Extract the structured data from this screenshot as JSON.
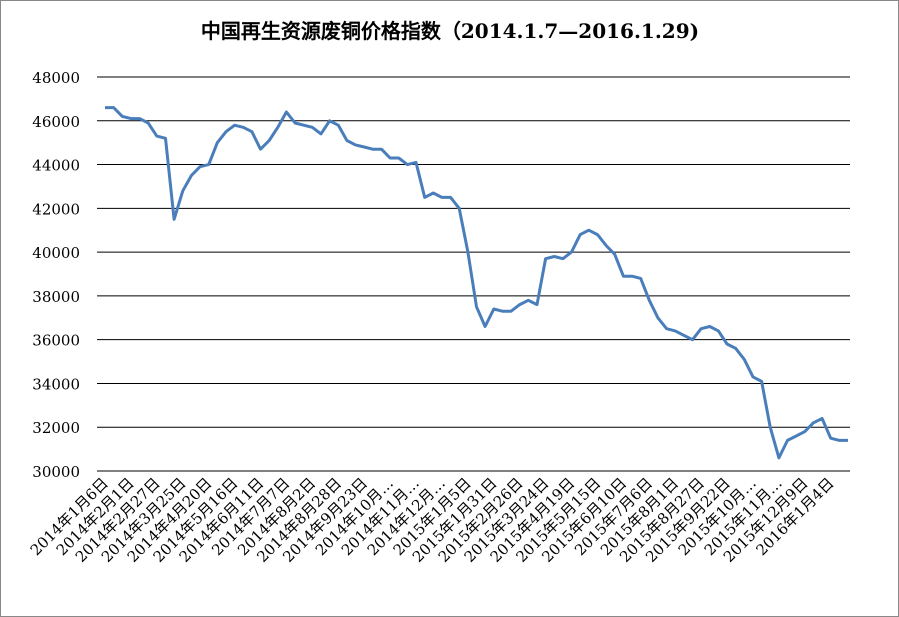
{
  "chart_data": {
    "type": "line",
    "title": "中国再生资源废铜价格指数（2014.1.7—2016.1.29)",
    "categories": [
      "2014年1月6日",
      null,
      null,
      "2014年2月1日",
      null,
      null,
      "2014年2月27日",
      null,
      null,
      "2014年3月25日",
      null,
      null,
      "2014年4月20日",
      null,
      null,
      "2014年5月16日",
      null,
      null,
      "2014年6月11日",
      null,
      null,
      "2014年7月7日",
      null,
      null,
      "2014年8月2日",
      null,
      null,
      "2014年8月28日",
      null,
      null,
      "2014年9月23日",
      null,
      null,
      "2014年10月…",
      null,
      null,
      "2014年11月…",
      null,
      null,
      "2014年12月…",
      null,
      null,
      "2015年1月5日",
      null,
      null,
      "2015年1月31日",
      null,
      null,
      "2015年2月26日",
      null,
      null,
      "2015年3月24日",
      null,
      null,
      "2015年4月19日",
      null,
      null,
      "2015年5月15日",
      null,
      null,
      "2015年6月10日",
      null,
      null,
      "2015年7月6日",
      null,
      null,
      "2015年8月1日",
      null,
      null,
      "2015年8月27日",
      null,
      null,
      "2015年9月22日",
      null,
      null,
      "2015年10月…",
      null,
      null,
      "2015年11月…",
      null,
      null,
      "2015年12月9日",
      null,
      null,
      "2016年1月4日",
      null,
      null
    ],
    "series": [
      {
        "name": "废铜价格指数",
        "color": "#4a7ebb",
        "values": [
          46600,
          46600,
          46200,
          46100,
          46100,
          45900,
          45300,
          45200,
          41500,
          42800,
          43500,
          43900,
          44000,
          45000,
          45500,
          45800,
          45700,
          45500,
          44700,
          45100,
          45700,
          46400,
          45900,
          45800,
          45700,
          45400,
          46000,
          45800,
          45100,
          44900,
          44800,
          44700,
          44700,
          44300,
          44300,
          44000,
          44100,
          42500,
          42700,
          42500,
          42500,
          42000,
          40000,
          37500,
          36600,
          37400,
          37300,
          37300,
          37600,
          37800,
          37600,
          39700,
          39800,
          39700,
          40000,
          40800,
          41000,
          40800,
          40300,
          39900,
          38900,
          38900,
          38800,
          37800,
          37000,
          36500,
          36400,
          36200,
          36000,
          36500,
          36600,
          36400,
          35800,
          35600,
          35100,
          34300,
          34100,
          32000,
          30600,
          31400,
          31600,
          31800,
          32200,
          32400,
          31500,
          31400,
          31400
        ]
      }
    ],
    "ylim": [
      30000,
      48000
    ],
    "yticks": [
      30000,
      32000,
      34000,
      36000,
      38000,
      40000,
      42000,
      44000,
      46000,
      48000
    ],
    "grid": true
  }
}
